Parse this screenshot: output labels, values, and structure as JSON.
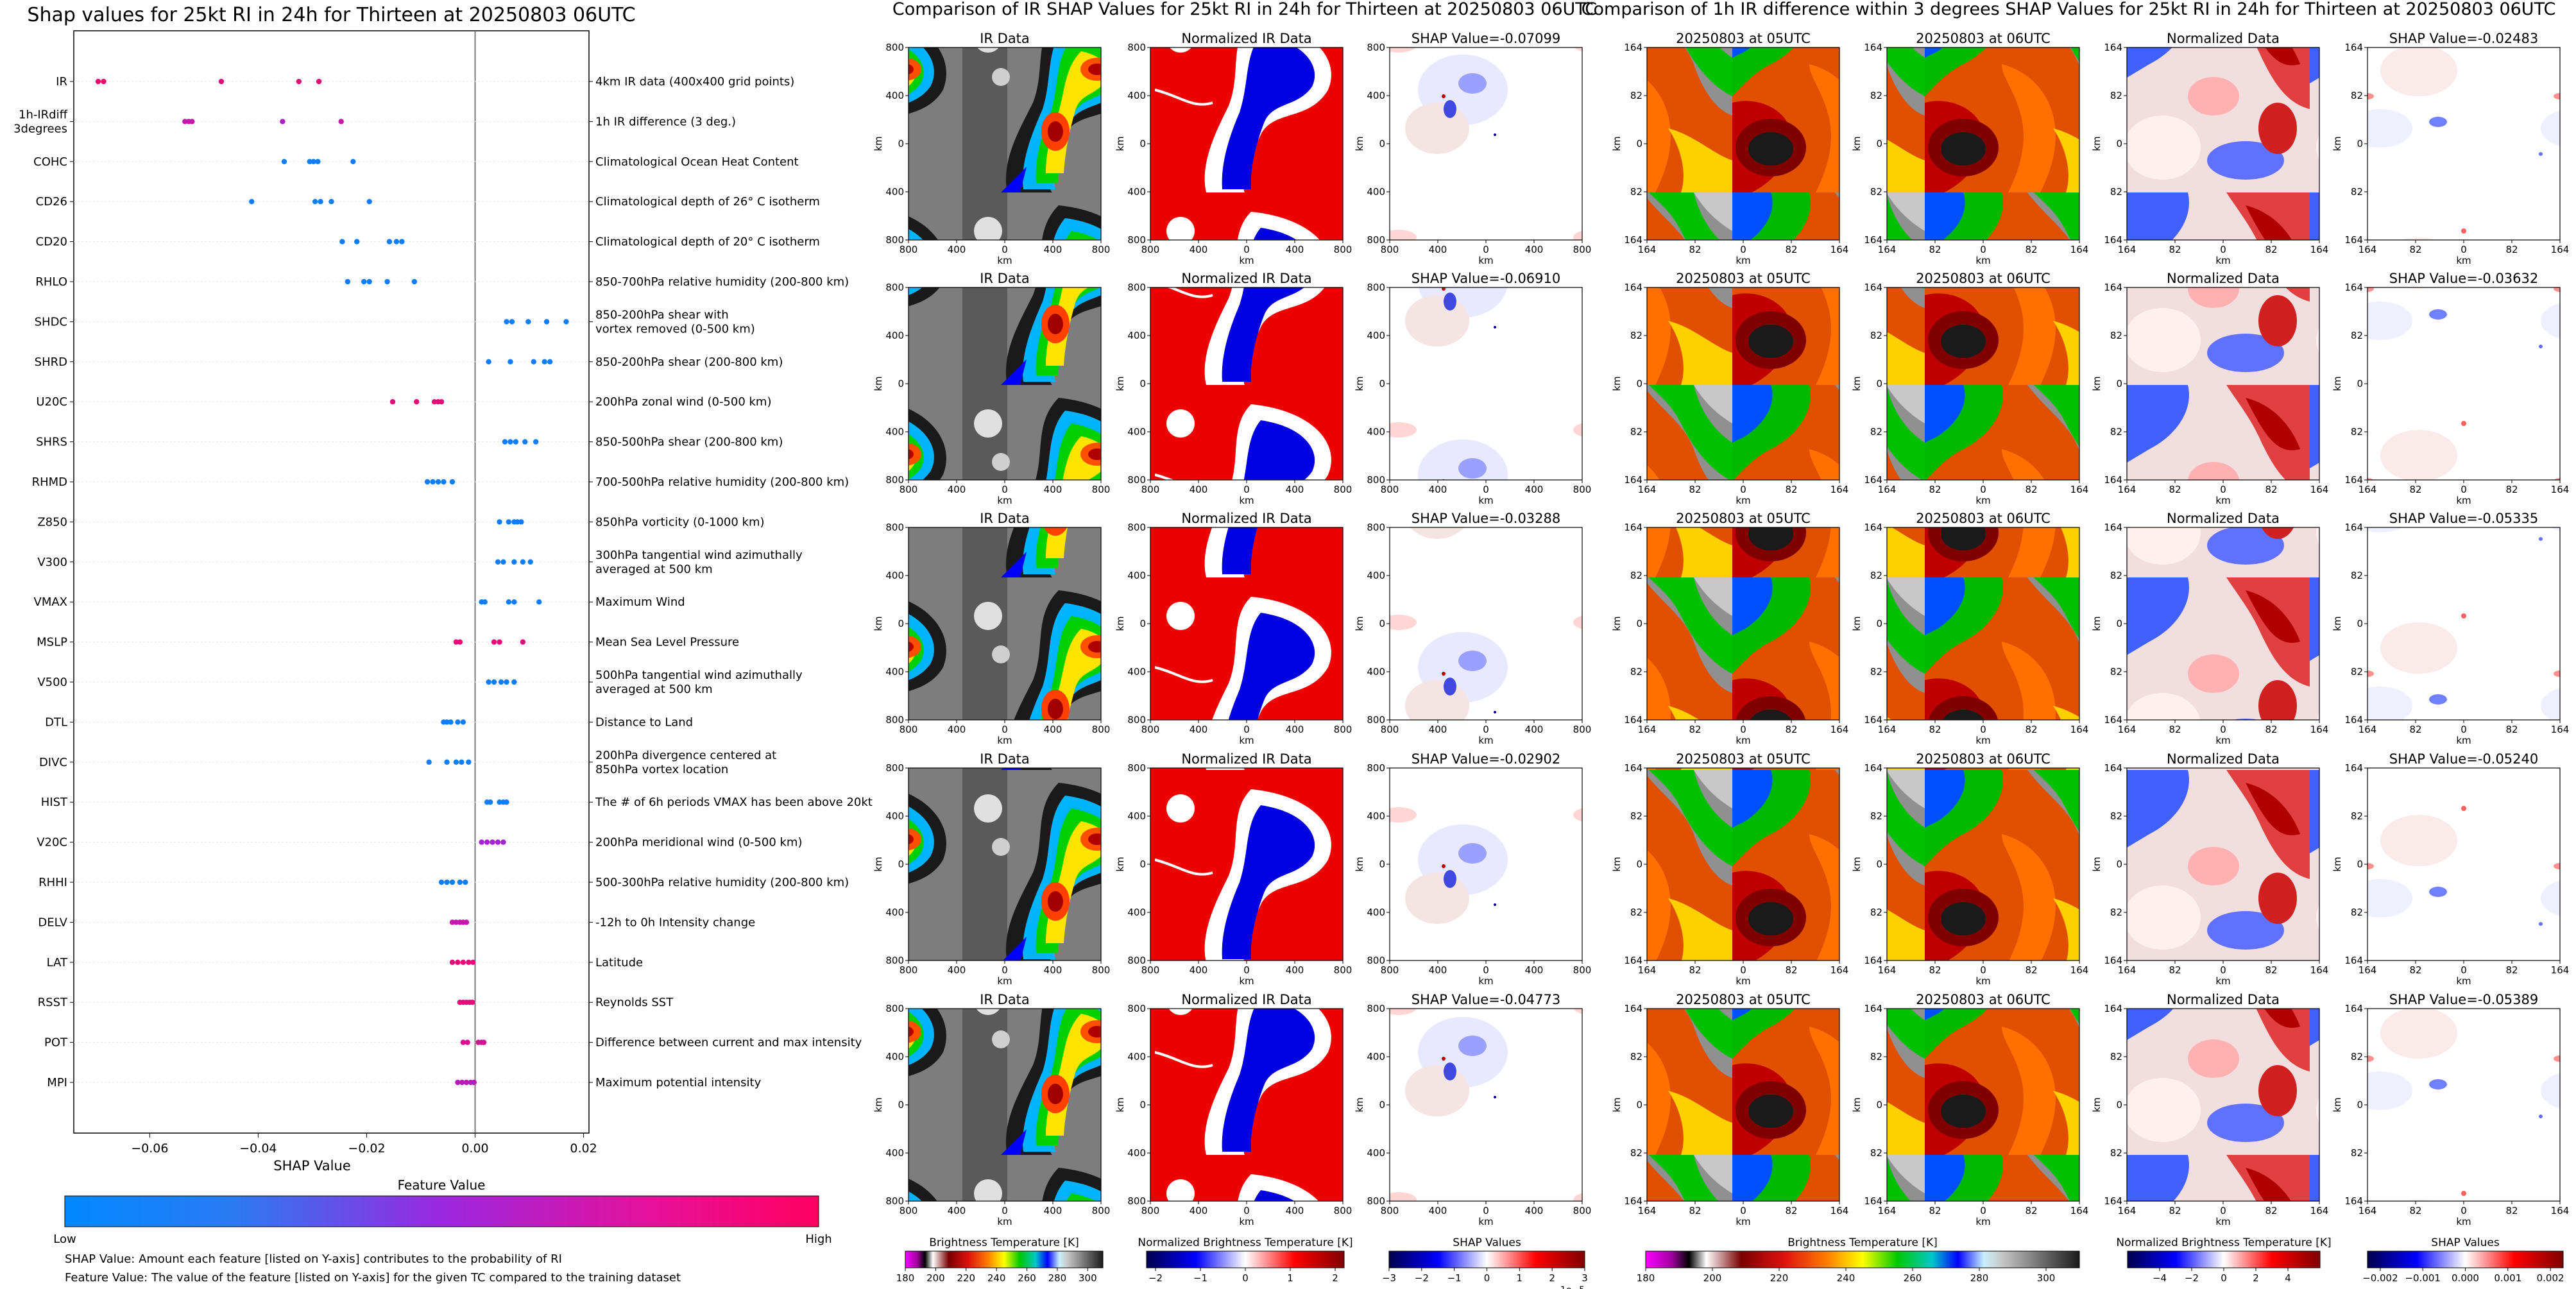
{
  "chart_data": [
    {
      "type": "scatter",
      "title": "Shap values for 25kt RI in 24h for Thirteen at 20250803 06UTC",
      "xlabel": "SHAP Value",
      "xlim": [
        -0.074,
        0.021
      ],
      "xticks": [
        -0.06,
        -0.04,
        -0.02,
        0.0,
        0.02
      ],
      "xtick_labels": [
        "−0.06",
        "−0.04",
        "−0.02",
        "0.00",
        "0.02"
      ],
      "features": [
        {
          "code": "IR",
          "desc": "4km IR data (400x400 grid points)",
          "points": [
            [
              -0.0695,
              0.95
            ],
            [
              -0.0685,
              0.95
            ],
            [
              -0.0468,
              0.9
            ],
            [
              -0.0325,
              0.92
            ],
            [
              -0.0288,
              0.92
            ]
          ]
        },
        {
          "code": "1h-IRdiff\n3degrees",
          "desc": "1h IR difference (3 deg.)",
          "points": [
            [
              -0.0535,
              0.7
            ],
            [
              -0.0528,
              0.7
            ],
            [
              -0.0522,
              0.7
            ],
            [
              -0.0355,
              0.6
            ],
            [
              -0.0247,
              0.72
            ]
          ]
        },
        {
          "code": "COHC",
          "desc": "Climatological Ocean Heat Content",
          "points": [
            [
              -0.0352,
              0.05
            ],
            [
              -0.0305,
              0.05
            ],
            [
              -0.0298,
              0.05
            ],
            [
              -0.029,
              0.05
            ],
            [
              -0.0225,
              0.05
            ]
          ]
        },
        {
          "code": "CD26",
          "desc": "Climatological depth of 26° C isotherm",
          "points": [
            [
              -0.0412,
              0.05
            ],
            [
              -0.0295,
              0.05
            ],
            [
              -0.0285,
              0.05
            ],
            [
              -0.0265,
              0.05
            ],
            [
              -0.0195,
              0.05
            ]
          ]
        },
        {
          "code": "CD20",
          "desc": "Climatological depth of 20° C isotherm",
          "points": [
            [
              -0.0245,
              0.05
            ],
            [
              -0.0218,
              0.05
            ],
            [
              -0.0158,
              0.05
            ],
            [
              -0.0145,
              0.05
            ],
            [
              -0.0135,
              0.05
            ]
          ]
        },
        {
          "code": "RHLO",
          "desc": "850-700hPa relative humidity (200-800 km)",
          "points": [
            [
              -0.0235,
              0.05
            ],
            [
              -0.0205,
              0.05
            ],
            [
              -0.0195,
              0.05
            ],
            [
              -0.0162,
              0.05
            ],
            [
              -0.0112,
              0.05
            ]
          ]
        },
        {
          "code": "SHDC",
          "desc": "850-200hPa shear with\nvortex removed (0-500 km)",
          "points": [
            [
              0.0058,
              0.05
            ],
            [
              0.0068,
              0.05
            ],
            [
              0.0098,
              0.05
            ],
            [
              0.0132,
              0.05
            ],
            [
              0.0168,
              0.05
            ]
          ]
        },
        {
          "code": "SHRD",
          "desc": "850-200hPa shear (200-800 km)",
          "points": [
            [
              0.0025,
              0.05
            ],
            [
              0.0065,
              0.05
            ],
            [
              0.0108,
              0.05
            ],
            [
              0.0128,
              0.05
            ],
            [
              0.0138,
              0.05
            ]
          ]
        },
        {
          "code": "U20C",
          "desc": "200hPa zonal wind (0-500 km)",
          "points": [
            [
              -0.0152,
              0.9
            ],
            [
              -0.0108,
              0.9
            ],
            [
              -0.0075,
              0.9
            ],
            [
              -0.0068,
              0.9
            ],
            [
              -0.0062,
              0.9
            ]
          ]
        },
        {
          "code": "SHRS",
          "desc": "850-500hPa shear (200-800 km)",
          "points": [
            [
              0.0055,
              0.05
            ],
            [
              0.0065,
              0.05
            ],
            [
              0.0075,
              0.05
            ],
            [
              0.0092,
              0.05
            ],
            [
              0.0112,
              0.05
            ]
          ]
        },
        {
          "code": "RHMD",
          "desc": "700-500hPa relative humidity (200-800 km)",
          "points": [
            [
              -0.0088,
              0.05
            ],
            [
              -0.0078,
              0.05
            ],
            [
              -0.0068,
              0.05
            ],
            [
              -0.0058,
              0.05
            ],
            [
              -0.0042,
              0.05
            ]
          ]
        },
        {
          "code": "Z850",
          "desc": "850hPa vorticity (0-1000 km)",
          "points": [
            [
              0.0045,
              0.05
            ],
            [
              0.0062,
              0.05
            ],
            [
              0.0072,
              0.05
            ],
            [
              0.0078,
              0.05
            ],
            [
              0.0085,
              0.05
            ]
          ]
        },
        {
          "code": "V300",
          "desc": "300hPa tangential wind azimuthally\naveraged at 500 km",
          "points": [
            [
              0.0042,
              0.05
            ],
            [
              0.0052,
              0.05
            ],
            [
              0.0072,
              0.05
            ],
            [
              0.0088,
              0.05
            ],
            [
              0.0102,
              0.05
            ]
          ]
        },
        {
          "code": "VMAX",
          "desc": "Maximum Wind",
          "points": [
            [
              0.0012,
              0.05
            ],
            [
              0.0018,
              0.05
            ],
            [
              0.0062,
              0.05
            ],
            [
              0.0072,
              0.05
            ],
            [
              0.0118,
              0.05
            ]
          ]
        },
        {
          "code": "MSLP",
          "desc": "Mean Sea Level Pressure",
          "points": [
            [
              -0.0035,
              0.9
            ],
            [
              -0.0028,
              0.9
            ],
            [
              0.0035,
              0.9
            ],
            [
              0.0045,
              0.9
            ],
            [
              0.0088,
              0.9
            ]
          ]
        },
        {
          "code": "V500",
          "desc": "500hPa tangential wind azimuthally\naveraged at 500 km",
          "points": [
            [
              0.0025,
              0.05
            ],
            [
              0.0035,
              0.05
            ],
            [
              0.0048,
              0.05
            ],
            [
              0.0058,
              0.05
            ],
            [
              0.0072,
              0.05
            ]
          ]
        },
        {
          "code": "DTL",
          "desc": "Distance to Land",
          "points": [
            [
              -0.0058,
              0.05
            ],
            [
              -0.0052,
              0.05
            ],
            [
              -0.0045,
              0.05
            ],
            [
              -0.0032,
              0.05
            ],
            [
              -0.0022,
              0.05
            ]
          ]
        },
        {
          "code": "DIVC",
          "desc": "200hPa divergence centered at\n850hPa vortex location",
          "points": [
            [
              -0.0085,
              0.05
            ],
            [
              -0.0052,
              0.05
            ],
            [
              -0.0035,
              0.05
            ],
            [
              -0.0025,
              0.05
            ],
            [
              -0.0012,
              0.05
            ]
          ]
        },
        {
          "code": "HIST",
          "desc": "The # of 6h periods VMAX has been above 20kt",
          "points": [
            [
              0.0022,
              0.05
            ],
            [
              0.0028,
              0.05
            ],
            [
              0.0045,
              0.05
            ],
            [
              0.0052,
              0.05
            ],
            [
              0.0058,
              0.05
            ]
          ]
        },
        {
          "code": "V20C",
          "desc": "200hPa meridional wind (0-500 km)",
          "points": [
            [
              0.0012,
              0.55
            ],
            [
              0.0022,
              0.55
            ],
            [
              0.0032,
              0.55
            ],
            [
              0.0042,
              0.55
            ],
            [
              0.0052,
              0.55
            ]
          ]
        },
        {
          "code": "RHHI",
          "desc": "500-300hPa relative humidity (200-800 km)",
          "points": [
            [
              -0.0062,
              0.05
            ],
            [
              -0.0052,
              0.05
            ],
            [
              -0.0042,
              0.05
            ],
            [
              -0.0028,
              0.05
            ],
            [
              -0.0018,
              0.05
            ]
          ]
        },
        {
          "code": "DELV",
          "desc": "-12h to 0h Intensity change",
          "points": [
            [
              -0.0042,
              0.7
            ],
            [
              -0.0035,
              0.7
            ],
            [
              -0.0028,
              0.7
            ],
            [
              -0.0022,
              0.7
            ],
            [
              -0.0016,
              0.7
            ]
          ]
        },
        {
          "code": "LAT",
          "desc": "Latitude",
          "points": [
            [
              -0.0042,
              0.9
            ],
            [
              -0.0032,
              0.9
            ],
            [
              -0.0022,
              0.9
            ],
            [
              -0.0012,
              0.9
            ],
            [
              -0.0004,
              0.9
            ]
          ]
        },
        {
          "code": "RSST",
          "desc": "Reynolds SST",
          "points": [
            [
              -0.0028,
              0.9
            ],
            [
              -0.0022,
              0.9
            ],
            [
              -0.0016,
              0.9
            ],
            [
              -0.001,
              0.9
            ],
            [
              -0.0005,
              0.9
            ]
          ]
        },
        {
          "code": "POT",
          "desc": "Difference between current and max intensity",
          "points": [
            [
              -0.0022,
              0.8
            ],
            [
              -0.0014,
              0.8
            ],
            [
              0.0006,
              0.8
            ],
            [
              0.0012,
              0.8
            ],
            [
              0.0016,
              0.8
            ]
          ]
        },
        {
          "code": "MPI",
          "desc": "Maximum potential intensity",
          "points": [
            [
              -0.0032,
              0.65
            ],
            [
              -0.0024,
              0.65
            ],
            [
              -0.0016,
              0.65
            ],
            [
              -0.0008,
              0.65
            ],
            [
              -0.0002,
              0.65
            ]
          ]
        }
      ],
      "colorbar": {
        "label": "Feature Value",
        "low": "Low",
        "high": "High",
        "colors": [
          "#0088ff",
          "#9b27e0",
          "#ff0060"
        ]
      },
      "notes": [
        "SHAP Value: Amount each feature [listed on Y-axis] contributes to the probability of RI",
        "Feature Value: The value of the feature [listed on Y-axis] for the given TC compared to the training dataset"
      ]
    },
    {
      "type": "image_grid",
      "title": "Comparison of IR SHAP Values for 25kt RI in 24h for Thirteen at 20250803 06UTC",
      "columns": [
        {
          "kind": "ir",
          "titles": [
            "IR Data",
            "IR Data",
            "IR Data",
            "IR Data",
            "IR Data"
          ]
        },
        {
          "kind": "nir",
          "titles": [
            "Normalized IR Data",
            "Normalized IR Data",
            "Normalized IR Data",
            "Normalized IR Data",
            "Normalized IR Data"
          ]
        },
        {
          "kind": "shap",
          "titles": [
            "SHAP Value=-0.07099",
            "SHAP Value=-0.06910",
            "SHAP Value=-0.03288",
            "SHAP Value=-0.02902",
            "SHAP Value=-0.04773"
          ]
        }
      ],
      "axis": {
        "xlabel": "km",
        "ylabel": "km",
        "xticks": [
          "800",
          "400",
          "0",
          "400",
          "800"
        ],
        "yticks": [
          "800",
          "400",
          "0",
          "400",
          "800"
        ]
      },
      "colorbars": [
        {
          "label": "Brightness Temperature [K]",
          "ticks": [
            "180",
            "200",
            "220",
            "240",
            "260",
            "280",
            "300"
          ],
          "range": [
            180,
            310
          ]
        },
        {
          "label": "Normalized Brightness Temperature [K]",
          "ticks": [
            "−2",
            "−1",
            "0",
            "1",
            "2"
          ],
          "range": [
            -2.2,
            2.2
          ]
        },
        {
          "label": "SHAP Values",
          "ticks": [
            "−3",
            "−2",
            "−1",
            "0",
            "1",
            "2",
            "3"
          ],
          "range": [
            -3,
            3
          ],
          "multiplier": "1e−5"
        }
      ]
    },
    {
      "type": "image_grid",
      "title": "Comparison of 1h IR difference within 3 degrees SHAP Values for 25kt RI in 24h for Thirteen at 20250803 06UTC",
      "columns": [
        {
          "kind": "ir3",
          "titles": [
            "20250803 at 05UTC",
            "20250803 at 05UTC",
            "20250803 at 05UTC",
            "20250803 at 05UTC",
            "20250803 at 05UTC"
          ]
        },
        {
          "kind": "ir3",
          "titles": [
            "20250803 at 06UTC",
            "20250803 at 06UTC",
            "20250803 at 06UTC",
            "20250803 at 06UTC",
            "20250803 at 06UTC"
          ]
        },
        {
          "kind": "norm3",
          "titles": [
            "Normalized Data",
            "Normalized Data",
            "Normalized Data",
            "Normalized Data",
            "Normalized Data"
          ]
        },
        {
          "kind": "shap3",
          "titles": [
            "SHAP Value=-0.02483",
            "SHAP Value=-0.03632",
            "SHAP Value=-0.05335",
            "SHAP Value=-0.05240",
            "SHAP Value=-0.05389"
          ]
        }
      ],
      "axis": {
        "xlabel": "km",
        "ylabel": "km",
        "xticks": [
          "164",
          "82",
          "0",
          "82",
          "164"
        ],
        "yticks": [
          "164",
          "82",
          "0",
          "82",
          "164"
        ]
      },
      "colorbars": [
        {
          "label": "Brightness Temperature [K]",
          "ticks": [
            "180",
            "200",
            "220",
            "240",
            "260",
            "280",
            "300"
          ],
          "range": [
            180,
            310
          ]
        },
        {
          "label": "Normalized Brightness Temperature [K]",
          "ticks": [
            "−4",
            "−2",
            "0",
            "2",
            "4"
          ],
          "range": [
            -6,
            6
          ]
        },
        {
          "label": "SHAP Values",
          "ticks": [
            "−0.002",
            "−0.001",
            "0.000",
            "0.001",
            "0.002"
          ],
          "range": [
            -0.0023,
            0.0023
          ]
        }
      ]
    }
  ]
}
